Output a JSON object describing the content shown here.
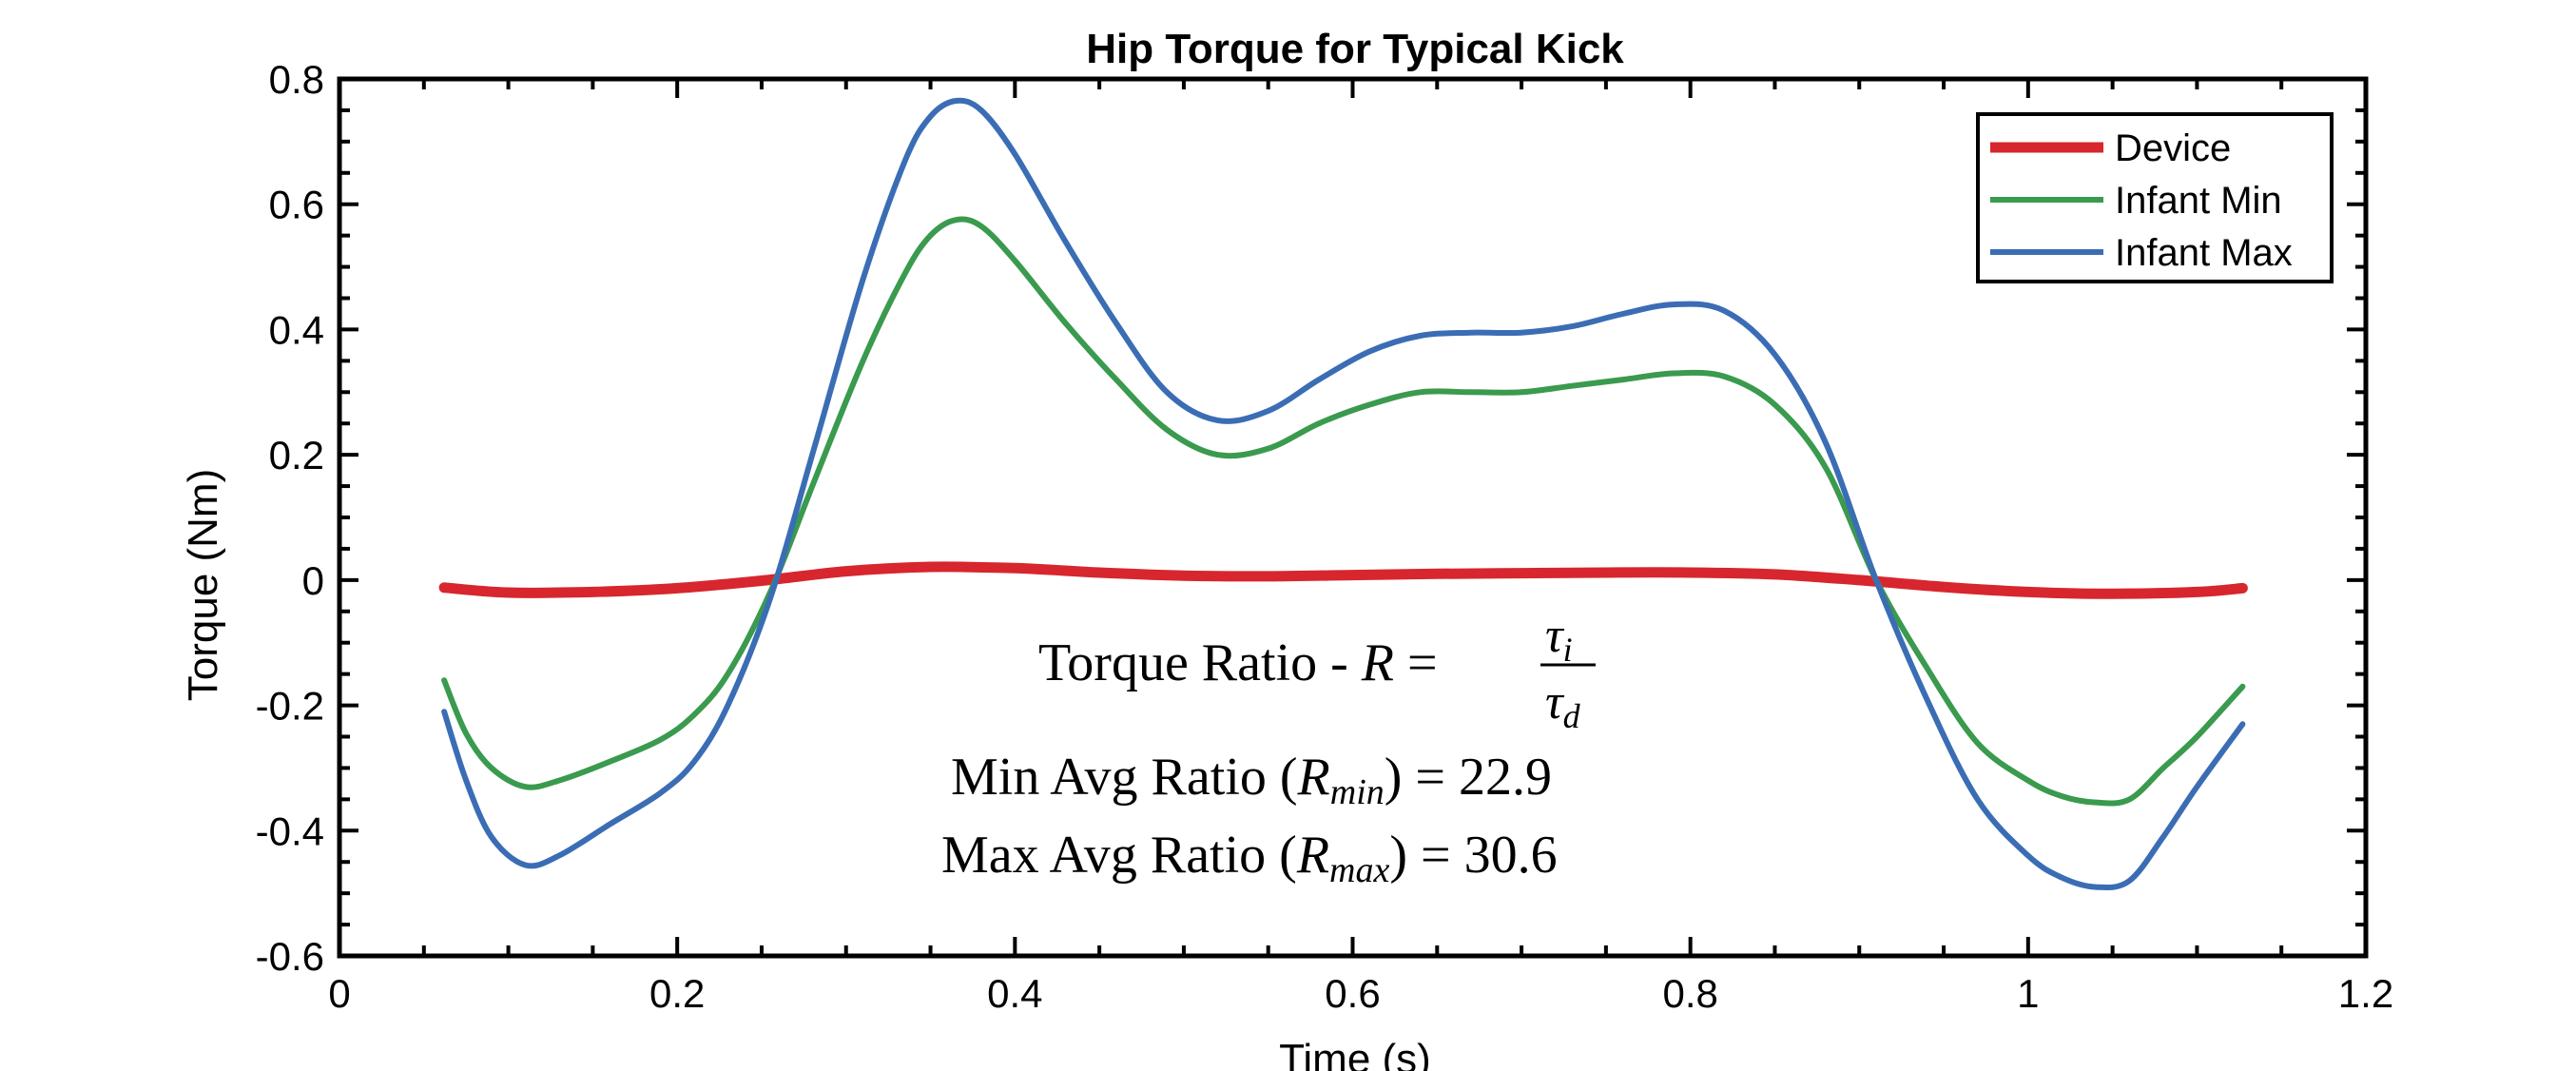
{
  "chart_data": {
    "type": "line",
    "title": "Hip Torque for Typical Kick",
    "xlabel": "Time (s)",
    "ylabel": "Torque (Nm)",
    "xlim": [
      0,
      1.2
    ],
    "ylim": [
      -0.6,
      0.8
    ],
    "xticks": [
      0,
      0.2,
      0.4,
      0.6,
      0.8,
      1,
      1.2
    ],
    "xtick_labels": [
      "0",
      "0.2",
      "0.4",
      "0.6",
      "0.8",
      "1",
      "1.2"
    ],
    "yticks": [
      -0.6,
      -0.4,
      -0.2,
      0,
      0.2,
      0.4,
      0.6,
      0.8
    ],
    "ytick_labels": [
      "-0.6",
      "-0.4",
      "-0.2",
      "0",
      "0.2",
      "0.4",
      "0.6",
      "0.8"
    ],
    "grid": false,
    "legend_position": "top-right",
    "series": [
      {
        "name": "Device",
        "color": "#d7262e",
        "x": [
          0.062,
          0.1,
          0.15,
          0.2,
          0.25,
          0.3,
          0.35,
          0.4,
          0.45,
          0.5,
          0.55,
          0.6,
          0.65,
          0.7,
          0.75,
          0.8,
          0.85,
          0.9,
          0.95,
          1.0,
          1.05,
          1.1,
          1.127
        ],
        "y": [
          -0.012,
          -0.02,
          -0.019,
          -0.013,
          -0.001,
          0.014,
          0.021,
          0.019,
          0.012,
          0.007,
          0.006,
          0.008,
          0.01,
          0.011,
          0.012,
          0.012,
          0.009,
          0.0,
          -0.011,
          -0.019,
          -0.022,
          -0.019,
          -0.013
        ]
      },
      {
        "name": "Infant Min",
        "color": "#3a9a4e",
        "x": [
          0.062,
          0.075,
          0.09,
          0.11,
          0.13,
          0.16,
          0.19,
          0.21,
          0.23,
          0.255,
          0.28,
          0.31,
          0.335,
          0.35,
          0.365,
          0.38,
          0.4,
          0.43,
          0.46,
          0.49,
          0.52,
          0.55,
          0.58,
          0.61,
          0.64,
          0.67,
          0.7,
          0.73,
          0.76,
          0.79,
          0.82,
          0.85,
          0.88,
          0.91,
          0.94,
          0.97,
          1.0,
          1.02,
          1.04,
          1.06,
          1.08,
          1.1,
          1.127
        ],
        "y": [
          -0.16,
          -0.245,
          -0.3,
          -0.33,
          -0.32,
          -0.29,
          -0.255,
          -0.215,
          -0.15,
          -0.02,
          0.15,
          0.35,
          0.49,
          0.55,
          0.575,
          0.565,
          0.51,
          0.41,
          0.32,
          0.24,
          0.2,
          0.21,
          0.25,
          0.28,
          0.3,
          0.3,
          0.3,
          0.31,
          0.32,
          0.33,
          0.325,
          0.28,
          0.18,
          0.0,
          -0.14,
          -0.26,
          -0.32,
          -0.345,
          -0.355,
          -0.35,
          -0.3,
          -0.25,
          -0.17
        ]
      },
      {
        "name": "Infant Max",
        "color": "#3b6db5",
        "x": [
          0.062,
          0.075,
          0.09,
          0.11,
          0.13,
          0.16,
          0.19,
          0.21,
          0.23,
          0.255,
          0.28,
          0.31,
          0.335,
          0.35,
          0.365,
          0.38,
          0.4,
          0.43,
          0.46,
          0.49,
          0.52,
          0.55,
          0.58,
          0.61,
          0.64,
          0.67,
          0.7,
          0.73,
          0.76,
          0.79,
          0.82,
          0.85,
          0.88,
          0.91,
          0.94,
          0.97,
          1.0,
          1.02,
          1.04,
          1.06,
          1.08,
          1.1,
          1.127
        ],
        "y": [
          -0.21,
          -0.32,
          -0.41,
          -0.455,
          -0.44,
          -0.39,
          -0.34,
          -0.29,
          -0.2,
          -0.03,
          0.2,
          0.48,
          0.67,
          0.74,
          0.765,
          0.75,
          0.68,
          0.54,
          0.41,
          0.3,
          0.255,
          0.27,
          0.32,
          0.365,
          0.39,
          0.395,
          0.395,
          0.405,
          0.425,
          0.44,
          0.43,
          0.36,
          0.22,
          0.0,
          -0.19,
          -0.35,
          -0.44,
          -0.475,
          -0.49,
          -0.48,
          -0.41,
          -0.33,
          -0.23
        ]
      }
    ],
    "annotations": {
      "ratio_definition_prefix": "Torque Ratio - ",
      "ratio_symbol": "R",
      "equals": "=",
      "numerator": "τ",
      "numerator_sub": "i",
      "denominator": "τ",
      "denominator_sub": "d",
      "min_prefix": "Min Avg Ratio (",
      "min_sub": "min",
      "min_value_suffix": ") = 22.9",
      "max_prefix": "Max Avg Ratio (",
      "max_sub": "max",
      "max_value_suffix": ") = 30.6"
    }
  }
}
